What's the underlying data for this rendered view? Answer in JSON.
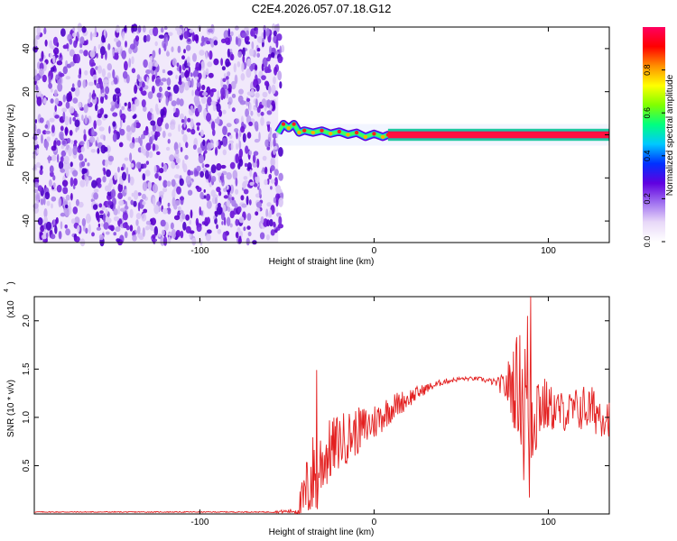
{
  "title": "C2E4.2026.057.07.18.G12",
  "chart_data": [
    {
      "type": "heatmap",
      "name": "spectrogram",
      "xlabel": "Height of straight line (km)",
      "ylabel": "Frequency (Hz)",
      "xlim": [
        -195,
        135
      ],
      "ylim": [
        -50,
        50
      ],
      "xticks": [
        -100,
        0,
        100
      ],
      "xtick_labels": [
        "-100",
        "0",
        "100"
      ],
      "yticks": [
        -40,
        -20,
        0,
        20,
        40
      ],
      "ytick_labels": [
        "-40",
        "-20",
        "0",
        "20",
        "40"
      ],
      "noise_region_x": [
        -195,
        -55
      ],
      "signal_trace": {
        "x": [
          -55,
          -52,
          -49,
          -46,
          -43,
          -40,
          -35,
          -30,
          -25,
          -20,
          -15,
          -10,
          -5,
          0,
          5,
          8,
          20,
          40,
          60,
          80,
          85,
          135
        ],
        "freq": [
          1,
          5,
          3,
          5,
          1,
          2,
          1,
          2,
          0.5,
          1.5,
          0,
          1,
          -1,
          0.5,
          -1,
          0,
          0,
          0,
          0,
          0,
          0,
          0
        ]
      },
      "colorbar": {
        "label": "Normalized spectral amplitude",
        "range": [
          0,
          1
        ],
        "ticks": [
          0.0,
          0.2,
          0.4,
          0.6,
          0.8
        ],
        "tick_labels": [
          "0.0",
          "0.2",
          "0.4",
          "0.6",
          "0.8"
        ],
        "colors": [
          "#ffffff",
          "#e8d8f8",
          "#a070f0",
          "#6000e0",
          "#0030ff",
          "#00c8ff",
          "#00ff80",
          "#80ff00",
          "#ffff00",
          "#ff9000",
          "#ff0000",
          "#ff0060"
        ]
      }
    },
    {
      "type": "line",
      "name": "snr",
      "xlabel": "Height of straight line (km)",
      "ylabel": "SNR (10 * v/v)",
      "y_multiplier_label": "(x10",
      "y_multiplier_exp": "4",
      "xlim": [
        -195,
        135
      ],
      "ylim": [
        0,
        2.25
      ],
      "xticks": [
        -100,
        0,
        100
      ],
      "xtick_labels": [
        "-100",
        "0",
        "100"
      ],
      "yticks": [
        0.5,
        1.0,
        1.5,
        2.0
      ],
      "ytick_labels": [
        "0.5",
        "1.0",
        "1.5",
        "2.0"
      ],
      "color": "#e32020",
      "series_envelope": {
        "x": [
          -195,
          -60,
          -45,
          -40,
          -37,
          -33,
          -28,
          -20,
          -10,
          0,
          10,
          20,
          30,
          40,
          50,
          60,
          70,
          75,
          80,
          85,
          88,
          91,
          95,
          100,
          110,
          120,
          130,
          135
        ],
        "base": [
          0.02,
          0.02,
          0.03,
          0.15,
          0.35,
          0.45,
          0.6,
          0.75,
          0.85,
          0.95,
          1.1,
          1.2,
          1.3,
          1.37,
          1.4,
          1.4,
          1.36,
          1.32,
          1.35,
          1.3,
          1.2,
          1.1,
          1.15,
          1.1,
          1.05,
          1.1,
          1.05,
          1.0
        ],
        "amp": [
          0.005,
          0.005,
          0.03,
          0.3,
          0.45,
          0.45,
          0.35,
          0.3,
          0.25,
          0.2,
          0.15,
          0.1,
          0.05,
          0.03,
          0.02,
          0.02,
          0.04,
          0.15,
          0.45,
          0.65,
          0.85,
          0.7,
          0.4,
          0.25,
          0.2,
          0.25,
          0.25,
          0.2
        ]
      },
      "spikes": [
        {
          "x": -33,
          "y": 1.49
        },
        {
          "x": -32.5,
          "y": 0.05
        },
        {
          "x": 88,
          "y": 2.05
        },
        {
          "x": 90,
          "y": 2.25
        },
        {
          "x": 89,
          "y": 0.17
        },
        {
          "x": 86,
          "y": 0.35
        }
      ]
    }
  ]
}
